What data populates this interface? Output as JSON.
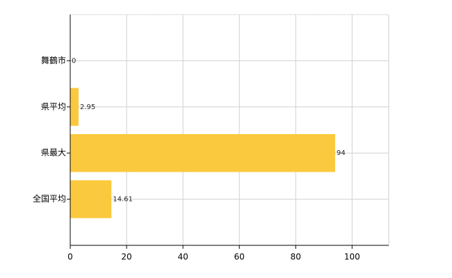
{
  "chart_data": {
    "type": "barh",
    "categories": [
      "舞鶴市",
      "県平均",
      "県最大",
      "全国平均"
    ],
    "values": [
      0,
      2.95,
      94,
      14.61
    ],
    "color": "#fbc93d",
    "xlim": [
      0,
      113
    ],
    "xticks": [
      0,
      20,
      40,
      60,
      80,
      100
    ],
    "grid": true
  }
}
